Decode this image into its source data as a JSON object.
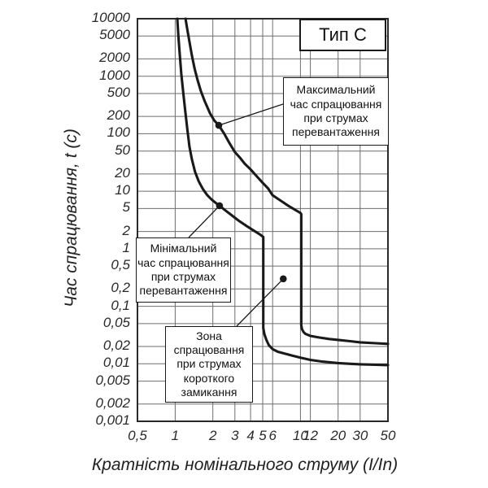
{
  "chart_data": {
    "type": "line",
    "title": "Тип C",
    "xlabel": "Кратність номінального струму (I/In)",
    "ylabel": "Час спрацювання, t (с)",
    "x_scale": "log",
    "y_scale": "log",
    "xlim": [
      0.5,
      50
    ],
    "ylim": [
      0.001,
      10000
    ],
    "grid": true,
    "x_ticks": [
      {
        "value": 0.5,
        "label": "0,5"
      },
      {
        "value": 1,
        "label": "1"
      },
      {
        "value": 2,
        "label": "2"
      },
      {
        "value": 3,
        "label": "3"
      },
      {
        "value": 4,
        "label": "4"
      },
      {
        "value": 5,
        "label": "5"
      },
      {
        "value": 6,
        "label": "6"
      },
      {
        "value": 10,
        "label": "10"
      },
      {
        "value": 12,
        "label": "12"
      },
      {
        "value": 20,
        "label": "20"
      },
      {
        "value": 30,
        "label": "30"
      },
      {
        "value": 50,
        "label": "50"
      }
    ],
    "y_ticks": [
      {
        "value": 10000,
        "label": "10000"
      },
      {
        "value": 5000,
        "label": "5000"
      },
      {
        "value": 2000,
        "label": "2000"
      },
      {
        "value": 1000,
        "label": "1000"
      },
      {
        "value": 500,
        "label": "500"
      },
      {
        "value": 200,
        "label": "200"
      },
      {
        "value": 100,
        "label": "100"
      },
      {
        "value": 50,
        "label": "50"
      },
      {
        "value": 20,
        "label": "20"
      },
      {
        "value": 10,
        "label": "10"
      },
      {
        "value": 5,
        "label": "5"
      },
      {
        "value": 2,
        "label": "2"
      },
      {
        "value": 1,
        "label": "1"
      },
      {
        "value": 0.5,
        "label": "0,5"
      },
      {
        "value": 0.2,
        "label": "0,2"
      },
      {
        "value": 0.1,
        "label": "0,1"
      },
      {
        "value": 0.05,
        "label": "0,05"
      },
      {
        "value": 0.02,
        "label": "0,02"
      },
      {
        "value": 0.01,
        "label": "0,01"
      },
      {
        "value": 0.005,
        "label": "0,005"
      },
      {
        "value": 0.002,
        "label": "0,002"
      },
      {
        "value": 0.001,
        "label": "0,001"
      }
    ],
    "series": [
      {
        "name": "Максимальний час спрацювання",
        "points": [
          [
            1.21,
            10000
          ],
          [
            1.25,
            6500
          ],
          [
            1.3,
            4000
          ],
          [
            1.36,
            2300
          ],
          [
            1.43,
            1350
          ],
          [
            1.5,
            900
          ],
          [
            1.6,
            560
          ],
          [
            1.72,
            370
          ],
          [
            1.9,
            225
          ],
          [
            2.05,
            170
          ],
          [
            2.23,
            140
          ],
          [
            2.45,
            102
          ],
          [
            2.7,
            70
          ],
          [
            3.0,
            48
          ],
          [
            3.3,
            38
          ],
          [
            3.6,
            30
          ],
          [
            4.0,
            24
          ],
          [
            4.5,
            18
          ],
          [
            5.0,
            14
          ],
          [
            5.5,
            11.3
          ],
          [
            6.0,
            8.5
          ],
          [
            7.0,
            6.8
          ],
          [
            8.0,
            5.6
          ],
          [
            9.0,
            4.8
          ],
          [
            10.0,
            4.2
          ],
          [
            10.15,
            4.0
          ],
          [
            10.15,
            0.047
          ],
          [
            10.3,
            0.04
          ],
          [
            10.6,
            0.0355
          ],
          [
            11,
            0.033
          ],
          [
            12,
            0.0305
          ],
          [
            14,
            0.0287
          ],
          [
            17,
            0.027
          ],
          [
            20,
            0.026
          ],
          [
            25,
            0.0247
          ],
          [
            30,
            0.0236
          ],
          [
            40,
            0.0228
          ],
          [
            50,
            0.0222
          ]
        ]
      },
      {
        "name": "Мінімальний час спрацювання",
        "points": [
          [
            1.04,
            10000
          ],
          [
            1.06,
            5000
          ],
          [
            1.09,
            2300
          ],
          [
            1.12,
            1100
          ],
          [
            1.16,
            520
          ],
          [
            1.2,
            260
          ],
          [
            1.25,
            120
          ],
          [
            1.3,
            60
          ],
          [
            1.36,
            36
          ],
          [
            1.44,
            22
          ],
          [
            1.54,
            15
          ],
          [
            1.66,
            11
          ],
          [
            1.8,
            8.6
          ],
          [
            1.95,
            7.2
          ],
          [
            2.1,
            6.3
          ],
          [
            2.26,
            5.6
          ],
          [
            2.5,
            4.7
          ],
          [
            2.8,
            3.9
          ],
          [
            3.2,
            3.1
          ],
          [
            3.7,
            2.5
          ],
          [
            4.2,
            2.1
          ],
          [
            4.7,
            1.8
          ],
          [
            5.05,
            1.6
          ],
          [
            5.05,
            0.042
          ],
          [
            5.15,
            0.033
          ],
          [
            5.35,
            0.026
          ],
          [
            5.6,
            0.021
          ],
          [
            6.0,
            0.018
          ],
          [
            6.6,
            0.0162
          ],
          [
            7.5,
            0.015
          ],
          [
            8.5,
            0.014
          ],
          [
            10,
            0.0128
          ],
          [
            12,
            0.0117
          ],
          [
            15,
            0.0109
          ],
          [
            20,
            0.0103
          ],
          [
            25,
            0.01
          ],
          [
            30,
            0.0098
          ],
          [
            40,
            0.0096
          ],
          [
            50,
            0.0095
          ]
        ]
      }
    ],
    "annotations": [
      {
        "id": "max",
        "lines": [
          "Максимальний",
          "час спрацювання",
          "при струмах",
          "перевантаження"
        ],
        "marker": {
          "x": 2.23,
          "y": 140
        }
      },
      {
        "id": "min",
        "lines": [
          "Мінімальний",
          "час спрацювання",
          "при струмах",
          "перевантаження"
        ],
        "marker": {
          "x": 2.26,
          "y": 5.6
        }
      },
      {
        "id": "zone",
        "lines": [
          "Зона",
          "спрацювання",
          "при струмах",
          "короткого",
          "замикання"
        ],
        "marker": {
          "x": 7.3,
          "y": 0.3
        }
      }
    ],
    "colors": {
      "curve": "#1a1a1a",
      "grid": "#6e6e6e",
      "border": "#2a2a2a",
      "background": "#ffffff",
      "text": "#2a2a2a"
    },
    "legend_position": "none"
  }
}
